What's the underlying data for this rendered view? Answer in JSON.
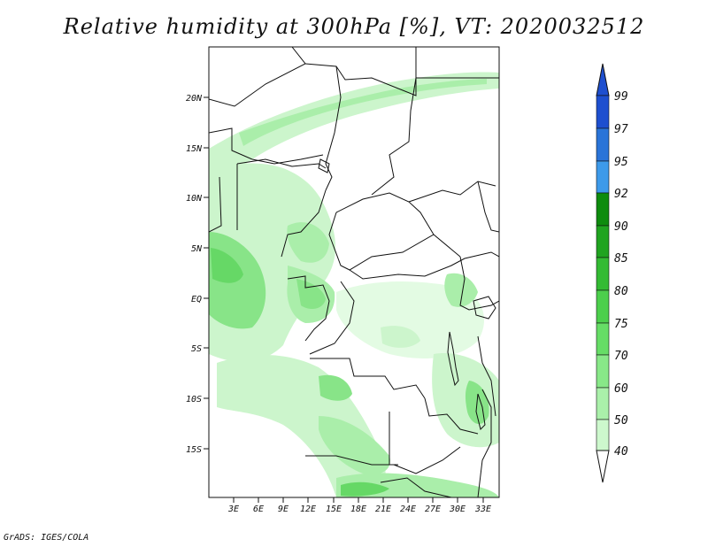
{
  "title": "Relative humidity at 300hPa [%], VT: 2020032512",
  "credit": "GrADS: IGES/COLA",
  "map": {
    "lon_range": [
      0,
      35
    ],
    "lat_range": [
      -20,
      25
    ],
    "lat_ticks": [
      "20N",
      "15N",
      "10N",
      "5N",
      "EQ",
      "5S",
      "10S",
      "15S"
    ],
    "lon_ticks": [
      "3E",
      "6E",
      "9E",
      "12E",
      "15E",
      "18E",
      "21E",
      "24E",
      "27E",
      "30E",
      "33E"
    ]
  },
  "colorbar": {
    "levels": [
      "99",
      "97",
      "95",
      "92",
      "90",
      "85",
      "80",
      "75",
      "70",
      "60",
      "50",
      "40"
    ],
    "colors": [
      "#1e4fcf",
      "#2a74d8",
      "#3d9aea",
      "#0e8c0e",
      "#20a420",
      "#33bb33",
      "#4ccf4c",
      "#66dd66",
      "#88e888",
      "#aaf0aa",
      "#cdf8cd",
      "#ecfdec"
    ]
  }
}
